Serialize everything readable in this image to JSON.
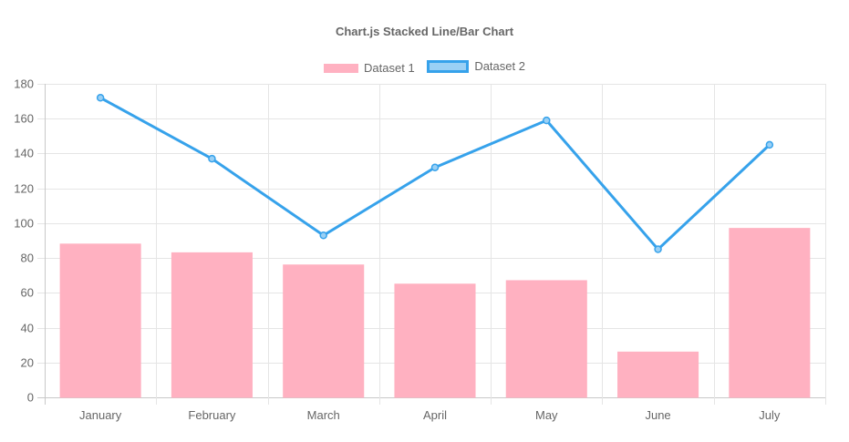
{
  "chart_data": {
    "type": "bar",
    "title": "Chart.js Stacked Line/Bar Chart",
    "categories": [
      "January",
      "February",
      "March",
      "April",
      "May",
      "June",
      "July"
    ],
    "series": [
      {
        "name": "Dataset 1",
        "type": "bar",
        "color": "#ffb1c1",
        "values": [
          88,
          83,
          76,
          65,
          67,
          26,
          97
        ]
      },
      {
        "name": "Dataset 2",
        "type": "line",
        "color": "#36a2eb",
        "values": [
          172,
          137,
          93,
          132,
          159,
          85,
          145
        ]
      }
    ],
    "ylim": [
      0,
      180
    ],
    "yticks": [
      "0",
      "20",
      "40",
      "60",
      "80",
      "100",
      "120",
      "140",
      "160",
      "180"
    ],
    "grid": true,
    "legend": "top"
  }
}
